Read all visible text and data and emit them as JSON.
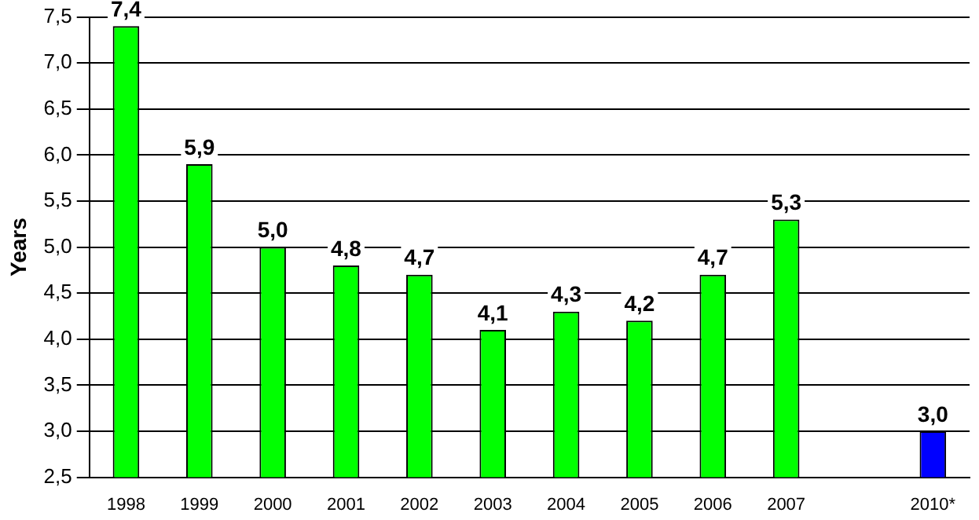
{
  "chart_data": {
    "type": "bar",
    "ylabel": "Years",
    "categories": [
      "1998",
      "1999",
      "2000",
      "2001",
      "2002",
      "2003",
      "2004",
      "2005",
      "2006",
      "2007",
      null,
      "2010*"
    ],
    "values": [
      7.4,
      5.9,
      5.0,
      4.8,
      4.7,
      4.1,
      4.3,
      4.2,
      4.7,
      5.3,
      null,
      3.0
    ],
    "colors": [
      "#00ff00",
      "#00ff00",
      "#00ff00",
      "#00ff00",
      "#00ff00",
      "#00ff00",
      "#00ff00",
      "#00ff00",
      "#00ff00",
      "#00ff00",
      "#00ff00",
      "#0000ff"
    ],
    "value_labels": [
      "7,4",
      "5,9",
      "5,0",
      "4,8",
      "4,7",
      "4,1",
      "4,3",
      "4,2",
      "4,7",
      "5,3",
      null,
      "3,0"
    ],
    "ylim": [
      2.5,
      7.5
    ],
    "yticks": [
      {
        "value": 2.5,
        "label": "2,5"
      },
      {
        "value": 3,
        "label": "3,0"
      },
      {
        "value": 3.5,
        "label": "3,5"
      },
      {
        "value": 4,
        "label": "4,0"
      },
      {
        "value": 4.5,
        "label": "4,5"
      },
      {
        "value": 5,
        "label": "5,0"
      },
      {
        "value": 5.5,
        "label": "5,5"
      },
      {
        "value": 6,
        "label": "6,0"
      },
      {
        "value": 6.5,
        "label": "6,5"
      },
      {
        "value": 7,
        "label": "7,0"
      },
      {
        "value": 7.5,
        "label": "7,5"
      }
    ],
    "grid": "y"
  }
}
